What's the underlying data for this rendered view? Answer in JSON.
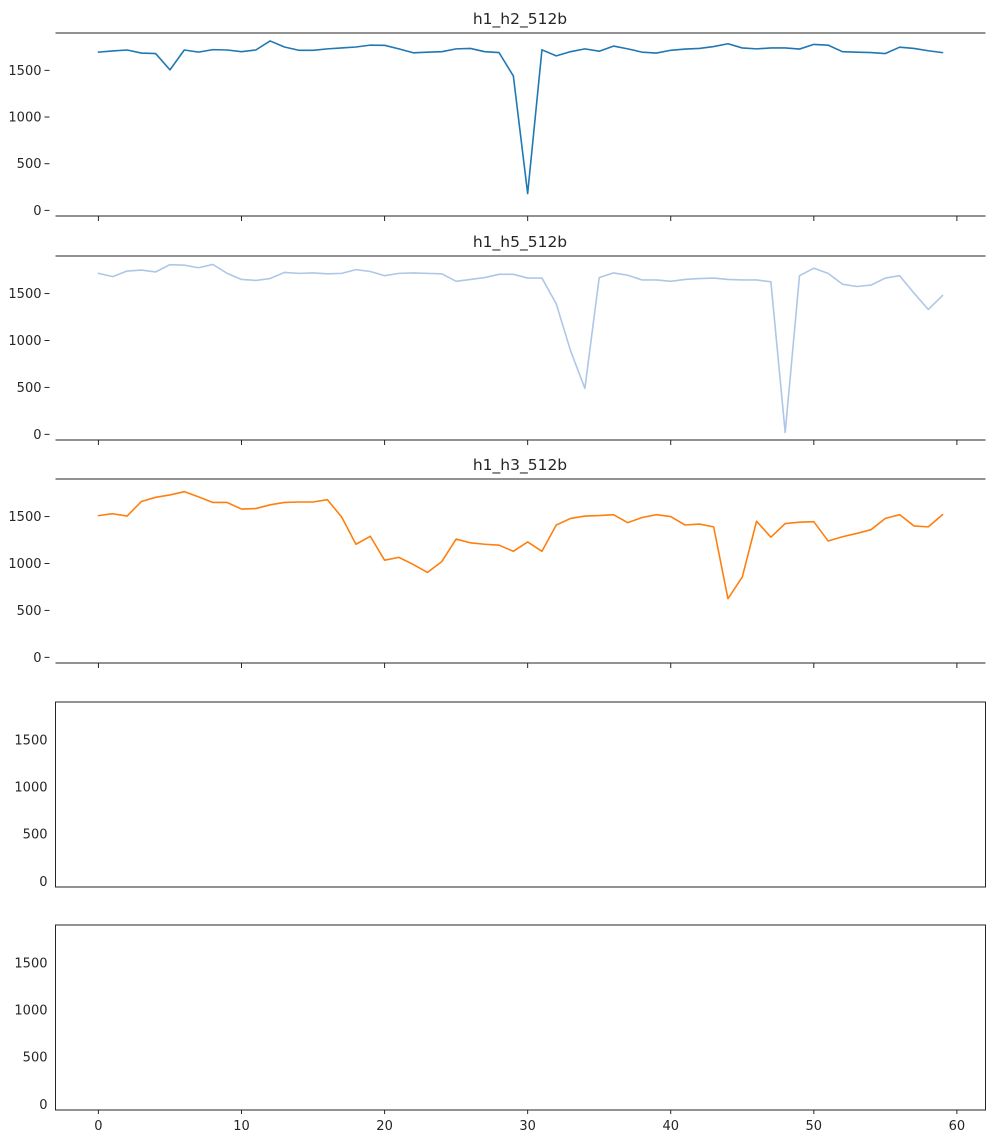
{
  "chart_data": {
    "type": "line",
    "layout": "5 stacked panels sharing x-axis",
    "xlim": [
      -3,
      62
    ],
    "x_ticks": [
      0,
      10,
      20,
      30,
      40,
      50,
      60
    ],
    "y_ticks": [
      0,
      500,
      1000,
      1500
    ],
    "ylim": [
      -60,
      1900
    ],
    "panels": [
      {
        "title": "h1_h2_512b",
        "color": "#1f77b4",
        "style": "despined",
        "x_tick_labels": false,
        "x": [
          0,
          1,
          2,
          3,
          4,
          5,
          6,
          7,
          8,
          9,
          10,
          11,
          12,
          13,
          14,
          15,
          16,
          17,
          18,
          19,
          20,
          21,
          22,
          23,
          24,
          25,
          26,
          27,
          28,
          29,
          30,
          31,
          32,
          33,
          34,
          35,
          36,
          37,
          38,
          39,
          40,
          41,
          42,
          43,
          44,
          45,
          46,
          47,
          48,
          49,
          50,
          51,
          52,
          53,
          54,
          55,
          56,
          57,
          58,
          59
        ],
        "values": [
          1695,
          1708,
          1718,
          1685,
          1680,
          1505,
          1718,
          1695,
          1722,
          1718,
          1700,
          1718,
          1815,
          1750,
          1715,
          1715,
          1730,
          1740,
          1750,
          1770,
          1768,
          1730,
          1688,
          1695,
          1700,
          1730,
          1735,
          1700,
          1690,
          1440,
          180,
          1720,
          1655,
          1700,
          1730,
          1705,
          1760,
          1730,
          1695,
          1685,
          1715,
          1728,
          1735,
          1755,
          1785,
          1740,
          1730,
          1740,
          1740,
          1728,
          1778,
          1770,
          1700,
          1695,
          1690,
          1680,
          1748,
          1735,
          1710,
          1690
        ]
      },
      {
        "title": "h1_h5_512b",
        "color": "#aec7e8",
        "style": "despined",
        "x_tick_labels": false,
        "x": [
          0,
          1,
          2,
          3,
          4,
          5,
          6,
          7,
          8,
          9,
          10,
          11,
          12,
          13,
          14,
          15,
          16,
          17,
          18,
          19,
          20,
          21,
          22,
          23,
          24,
          25,
          26,
          27,
          28,
          29,
          30,
          31,
          32,
          33,
          34,
          35,
          36,
          37,
          38,
          39,
          40,
          41,
          42,
          43,
          44,
          45,
          46,
          47,
          48,
          49,
          50,
          51,
          52,
          53,
          54,
          55,
          56,
          57,
          58,
          59
        ],
        "values": [
          1715,
          1680,
          1740,
          1750,
          1730,
          1808,
          1802,
          1775,
          1810,
          1715,
          1650,
          1640,
          1660,
          1725,
          1715,
          1720,
          1710,
          1715,
          1755,
          1735,
          1690,
          1715,
          1720,
          1715,
          1710,
          1630,
          1650,
          1670,
          1705,
          1705,
          1665,
          1665,
          1390,
          890,
          490,
          1670,
          1720,
          1695,
          1645,
          1645,
          1630,
          1650,
          1660,
          1665,
          1650,
          1645,
          1645,
          1625,
          20,
          1690,
          1770,
          1715,
          1600,
          1575,
          1590,
          1665,
          1690,
          1505,
          1330,
          1480
        ]
      },
      {
        "title": "h1_h3_512b",
        "color": "#ff7f0e",
        "style": "despined",
        "x_tick_labels": false,
        "x": [
          0,
          1,
          2,
          3,
          4,
          5,
          6,
          7,
          8,
          9,
          10,
          11,
          12,
          13,
          14,
          15,
          16,
          17,
          18,
          19,
          20,
          21,
          22,
          23,
          24,
          25,
          26,
          27,
          28,
          29,
          30,
          31,
          32,
          33,
          34,
          35,
          36,
          37,
          38,
          39,
          40,
          41,
          42,
          43,
          44,
          45,
          46,
          47,
          48,
          49,
          50,
          51,
          52,
          53,
          54,
          55,
          56,
          57,
          58,
          59
        ],
        "values": [
          1510,
          1530,
          1505,
          1660,
          1705,
          1730,
          1765,
          1710,
          1650,
          1650,
          1580,
          1585,
          1625,
          1650,
          1655,
          1655,
          1680,
          1495,
          1205,
          1290,
          1035,
          1065,
          990,
          905,
          1020,
          1260,
          1220,
          1205,
          1195,
          1130,
          1230,
          1130,
          1410,
          1480,
          1505,
          1510,
          1520,
          1435,
          1490,
          1520,
          1500,
          1410,
          1420,
          1390,
          625,
          855,
          1450,
          1280,
          1425,
          1440,
          1445,
          1240,
          1285,
          1320,
          1360,
          1480,
          1520,
          1400,
          1390,
          1520
        ]
      },
      {
        "title": "",
        "color": "#1f77b4",
        "style": "boxed",
        "x_tick_labels": false,
        "x": [],
        "values": []
      },
      {
        "title": "",
        "color": "#1f77b4",
        "style": "boxed",
        "x_tick_labels": true,
        "x": [],
        "values": []
      }
    ]
  }
}
